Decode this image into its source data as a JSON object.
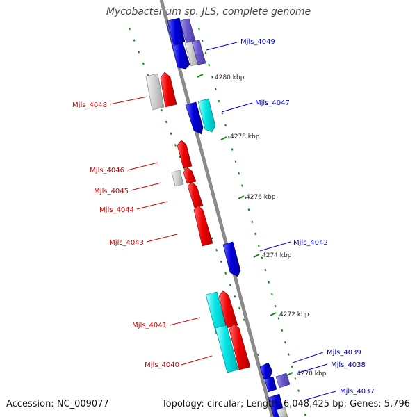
{
  "title": "Mycobacterium sp. JLS, complete genome",
  "footer": {
    "accession": "Accession: NC_009077",
    "stats": "Topology: circular; Length: 6,048,425 bp; Genes: 5,796"
  },
  "colors": {
    "backbone": "#8a8a8a",
    "forward_label": "#cc0000",
    "reverse_label": "#0000cc",
    "tick": "#118811",
    "red": "#ee0000",
    "blue": "#0000dd",
    "cyan": "#00e5e5",
    "gray": "#c8c8c8",
    "purple": "#6a5acd"
  },
  "kbp_labels": [
    "4280 kbp",
    "4278 kbp",
    "4276 kbp",
    "4274 kbp",
    "4272 kbp",
    "4270 kbp"
  ],
  "gene_labels": [
    {
      "text": "Mjls_4049",
      "strand": "reverse"
    },
    {
      "text": "Mjls_4048",
      "strand": "forward"
    },
    {
      "text": "Mjls_4047",
      "strand": "reverse"
    },
    {
      "text": "Mjls_4046",
      "strand": "forward"
    },
    {
      "text": "Mjls_4045",
      "strand": "forward"
    },
    {
      "text": "Mjls_4044",
      "strand": "forward"
    },
    {
      "text": "Mjls_4043",
      "strand": "forward"
    },
    {
      "text": "Mjls_4042",
      "strand": "reverse"
    },
    {
      "text": "Mjls_4041",
      "strand": "forward"
    },
    {
      "text": "Mjls_4040",
      "strand": "forward"
    },
    {
      "text": "Mjls_4039",
      "strand": "reverse"
    },
    {
      "text": "Mjls_4038",
      "strand": "reverse"
    },
    {
      "text": "Mjls_4037",
      "strand": "reverse"
    }
  ]
}
